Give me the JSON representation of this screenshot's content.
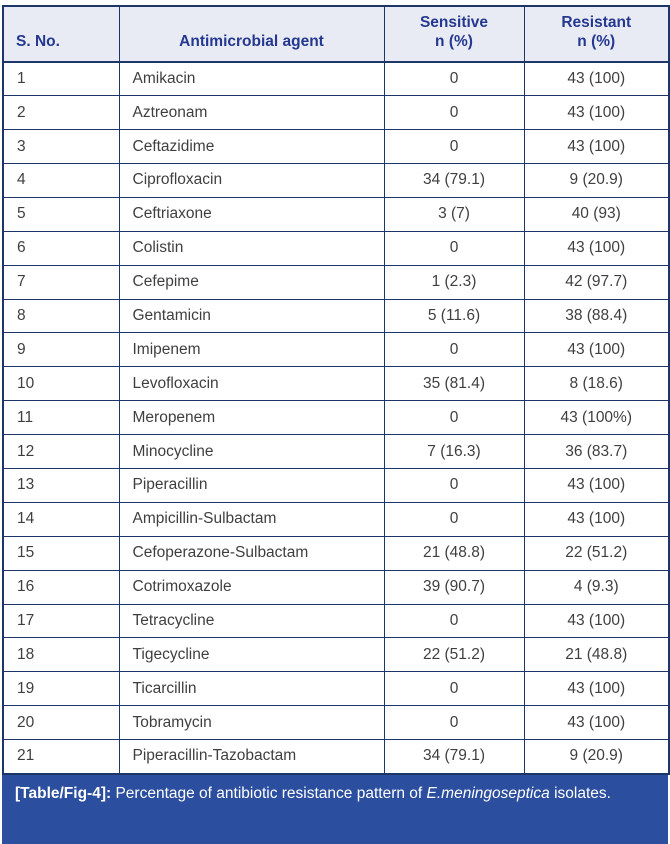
{
  "colors": {
    "border": "#1c3667",
    "header_bg": "#e9ebf4",
    "header_text": "#24388f",
    "body_text": "#3f3f3f",
    "caption_bg": "#2b4e9e",
    "caption_text": "#ffffff"
  },
  "table": {
    "columns": [
      {
        "id": "sno",
        "label": "S. No.",
        "sub": ""
      },
      {
        "id": "agent",
        "label": "Antimicrobial agent",
        "sub": ""
      },
      {
        "id": "sensitive",
        "label": "Sensitive",
        "sub": "n (%)"
      },
      {
        "id": "resistant",
        "label": "Resistant",
        "sub": "n (%)"
      }
    ],
    "rows": [
      {
        "sno": "1",
        "agent": "Amikacin",
        "sensitive": "0",
        "resistant": "43 (100)"
      },
      {
        "sno": "2",
        "agent": "Aztreonam",
        "sensitive": "0",
        "resistant": "43 (100)"
      },
      {
        "sno": "3",
        "agent": "Ceftazidime",
        "sensitive": "0",
        "resistant": "43 (100)"
      },
      {
        "sno": "4",
        "agent": "Ciprofloxacin",
        "sensitive": "34 (79.1)",
        "resistant": "9 (20.9)"
      },
      {
        "sno": "5",
        "agent": "Ceftriaxone",
        "sensitive": "3 (7)",
        "resistant": "40 (93)"
      },
      {
        "sno": "6",
        "agent": "Colistin",
        "sensitive": "0",
        "resistant": "43 (100)"
      },
      {
        "sno": "7",
        "agent": "Cefepime",
        "sensitive": "1 (2.3)",
        "resistant": "42 (97.7)"
      },
      {
        "sno": "8",
        "agent": "Gentamicin",
        "sensitive": "5 (11.6)",
        "resistant": "38 (88.4)"
      },
      {
        "sno": "9",
        "agent": "Imipenem",
        "sensitive": "0",
        "resistant": "43 (100)"
      },
      {
        "sno": "10",
        "agent": "Levofloxacin",
        "sensitive": "35 (81.4)",
        "resistant": "8 (18.6)"
      },
      {
        "sno": "11",
        "agent": "Meropenem",
        "sensitive": "0",
        "resistant": "43 (100%)"
      },
      {
        "sno": "12",
        "agent": "Minocycline",
        "sensitive": "7 (16.3)",
        "resistant": "36 (83.7)"
      },
      {
        "sno": "13",
        "agent": "Piperacillin",
        "sensitive": "0",
        "resistant": "43 (100)"
      },
      {
        "sno": "14",
        "agent": "Ampicillin-Sulbactam",
        "sensitive": "0",
        "resistant": "43 (100)"
      },
      {
        "sno": "15",
        "agent": "Cefoperazone-Sulbactam",
        "sensitive": "21 (48.8)",
        "resistant": "22 (51.2)"
      },
      {
        "sno": "16",
        "agent": "Cotrimoxazole",
        "sensitive": "39 (90.7)",
        "resistant": "4 (9.3)"
      },
      {
        "sno": "17",
        "agent": "Tetracycline",
        "sensitive": "0",
        "resistant": "43 (100)"
      },
      {
        "sno": "18",
        "agent": "Tigecycline",
        "sensitive": "22 (51.2)",
        "resistant": "21 (48.8)"
      },
      {
        "sno": "19",
        "agent": "Ticarcillin",
        "sensitive": "0",
        "resistant": "43 (100)"
      },
      {
        "sno": "20",
        "agent": "Tobramycin",
        "sensitive": "0",
        "resistant": "43 (100)"
      },
      {
        "sno": "21",
        "agent": "Piperacillin-Tazobactam",
        "sensitive": "34 (79.1)",
        "resistant": "9 (20.9)"
      }
    ]
  },
  "caption": {
    "label": "[Table/Fig-4]:",
    "text": "Percentage of antibiotic resistance pattern of",
    "species": "E.meningoseptica",
    "text2": "isolates."
  }
}
